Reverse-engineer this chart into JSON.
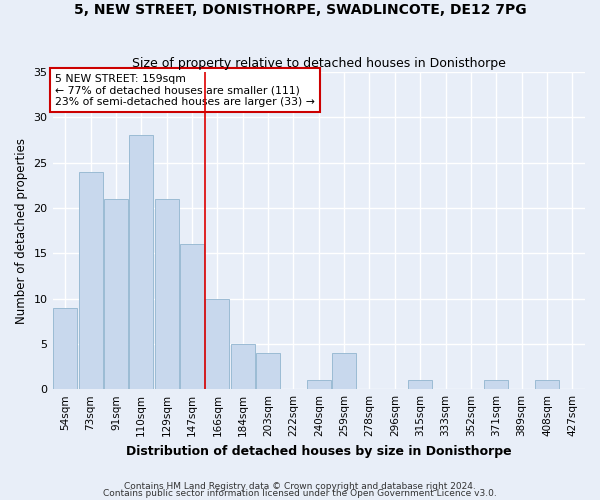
{
  "title1": "5, NEW STREET, DONISTHORPE, SWADLINCOTE, DE12 7PG",
  "title2": "Size of property relative to detached houses in Donisthorpe",
  "xlabel": "Distribution of detached houses by size in Donisthorpe",
  "ylabel": "Number of detached properties",
  "categories": [
    "54sqm",
    "73sqm",
    "91sqm",
    "110sqm",
    "129sqm",
    "147sqm",
    "166sqm",
    "184sqm",
    "203sqm",
    "222sqm",
    "240sqm",
    "259sqm",
    "278sqm",
    "296sqm",
    "315sqm",
    "333sqm",
    "352sqm",
    "371sqm",
    "389sqm",
    "408sqm",
    "427sqm"
  ],
  "values": [
    9,
    24,
    21,
    28,
    21,
    16,
    10,
    5,
    4,
    0,
    1,
    4,
    0,
    0,
    1,
    0,
    0,
    1,
    0,
    1,
    0
  ],
  "bar_color": "#c8d8ed",
  "bar_edge_color": "#9bbbd4",
  "background_color": "#e8eef8",
  "grid_color": "#ffffff",
  "red_line_x": 5.5,
  "annotation_text": "5 NEW STREET: 159sqm\n← 77% of detached houses are smaller (111)\n23% of semi-detached houses are larger (33) →",
  "annotation_box_color": "#ffffff",
  "annotation_box_edge_color": "#cc0000",
  "ylim": [
    0,
    35
  ],
  "yticks": [
    0,
    5,
    10,
    15,
    20,
    25,
    30,
    35
  ],
  "footnote1": "Contains HM Land Registry data © Crown copyright and database right 2024.",
  "footnote2": "Contains public sector information licensed under the Open Government Licence v3.0."
}
